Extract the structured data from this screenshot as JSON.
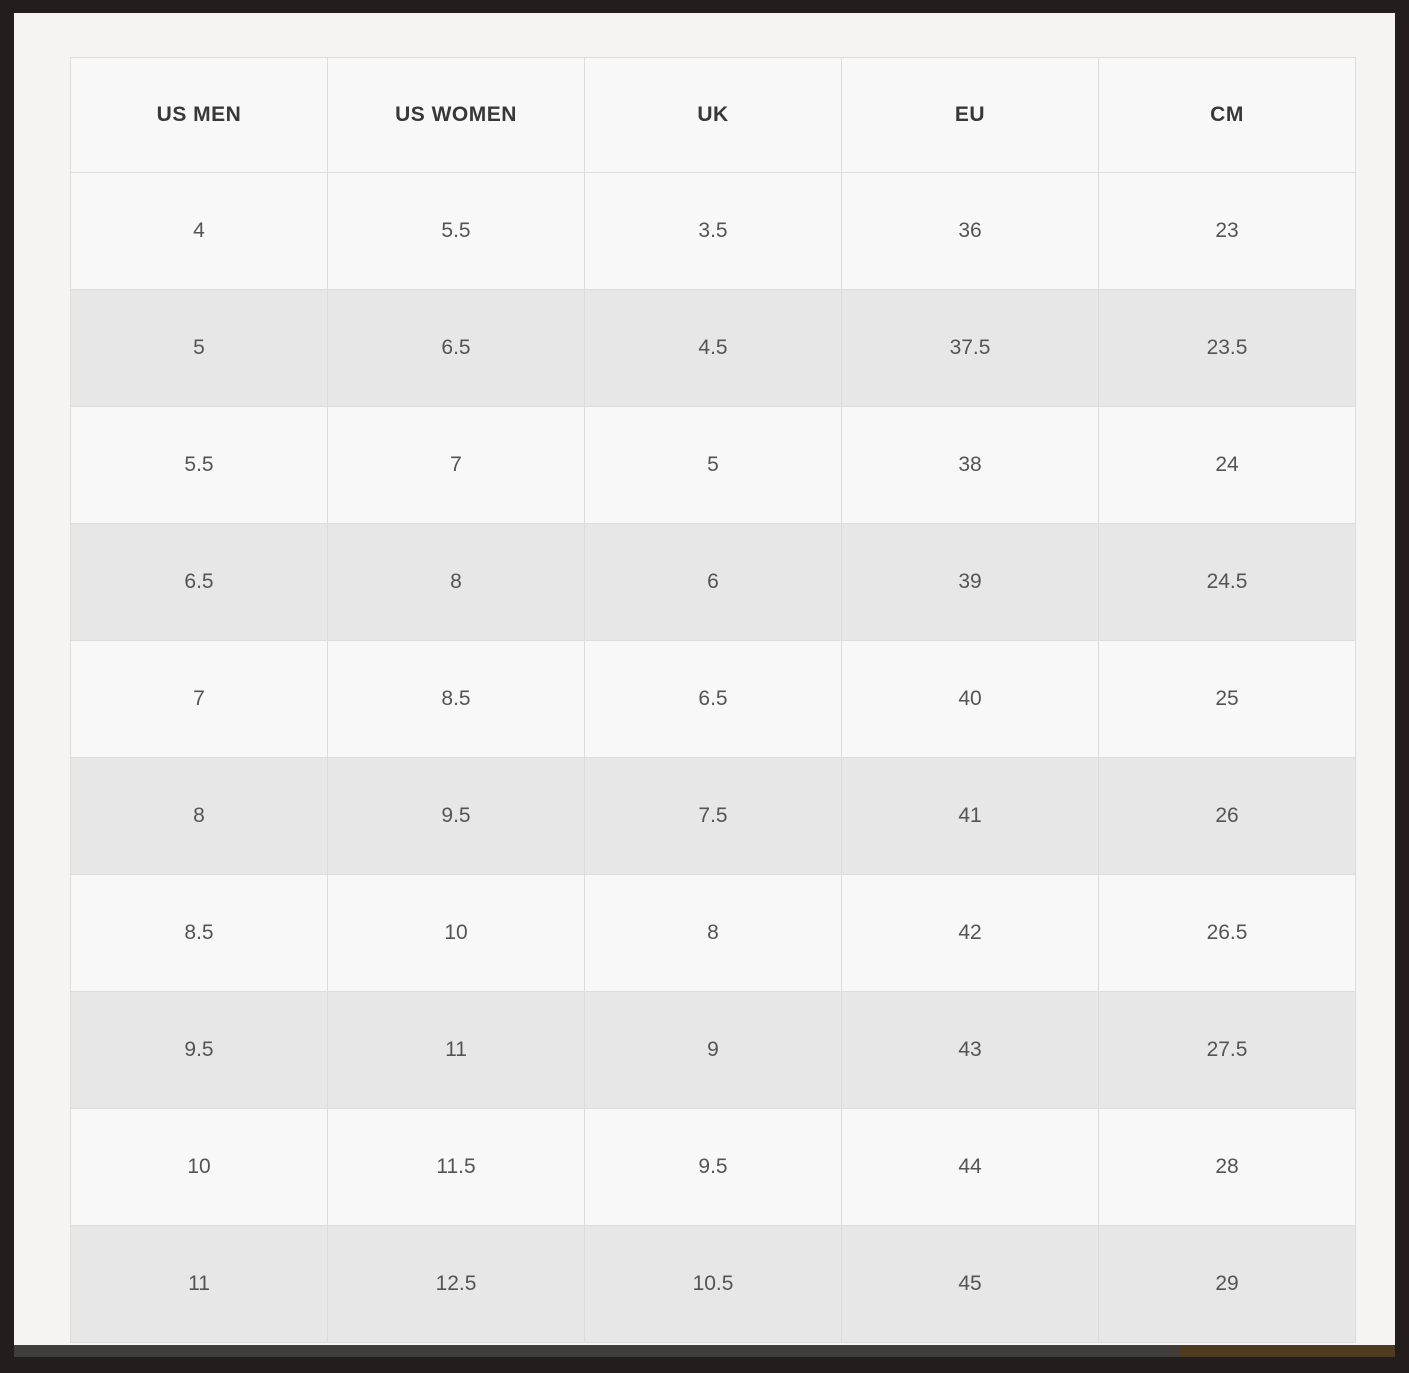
{
  "table": {
    "columns": [
      "US MEN",
      "US WOMEN",
      "UK",
      "EU",
      "CM"
    ],
    "rows": [
      [
        "4",
        "5.5",
        "3.5",
        "36",
        "23"
      ],
      [
        "5",
        "6.5",
        "4.5",
        "37.5",
        "23.5"
      ],
      [
        "5.5",
        "7",
        "5",
        "38",
        "24"
      ],
      [
        "6.5",
        "8",
        "6",
        "39",
        "24.5"
      ],
      [
        "7",
        "8.5",
        "6.5",
        "40",
        "25"
      ],
      [
        "8",
        "9.5",
        "7.5",
        "41",
        "26"
      ],
      [
        "8.5",
        "10",
        "8",
        "42",
        "26.5"
      ],
      [
        "9.5",
        "11",
        "9",
        "43",
        "27.5"
      ],
      [
        "10",
        "11.5",
        "9.5",
        "44",
        "28"
      ],
      [
        "11",
        "12.5",
        "10.5",
        "45",
        "29"
      ]
    ]
  },
  "colors": {
    "frame": "#231e1b",
    "page_bg": "#f5f4f3",
    "row_light": "#f8f8f8",
    "row_gray": "#e8e7e7",
    "border": "#dcdcdc",
    "header_text": "#383838",
    "cell_text": "#545454",
    "scrollbar_dark": "#403d3c",
    "scrollbar_brown": "#4d3c20"
  }
}
